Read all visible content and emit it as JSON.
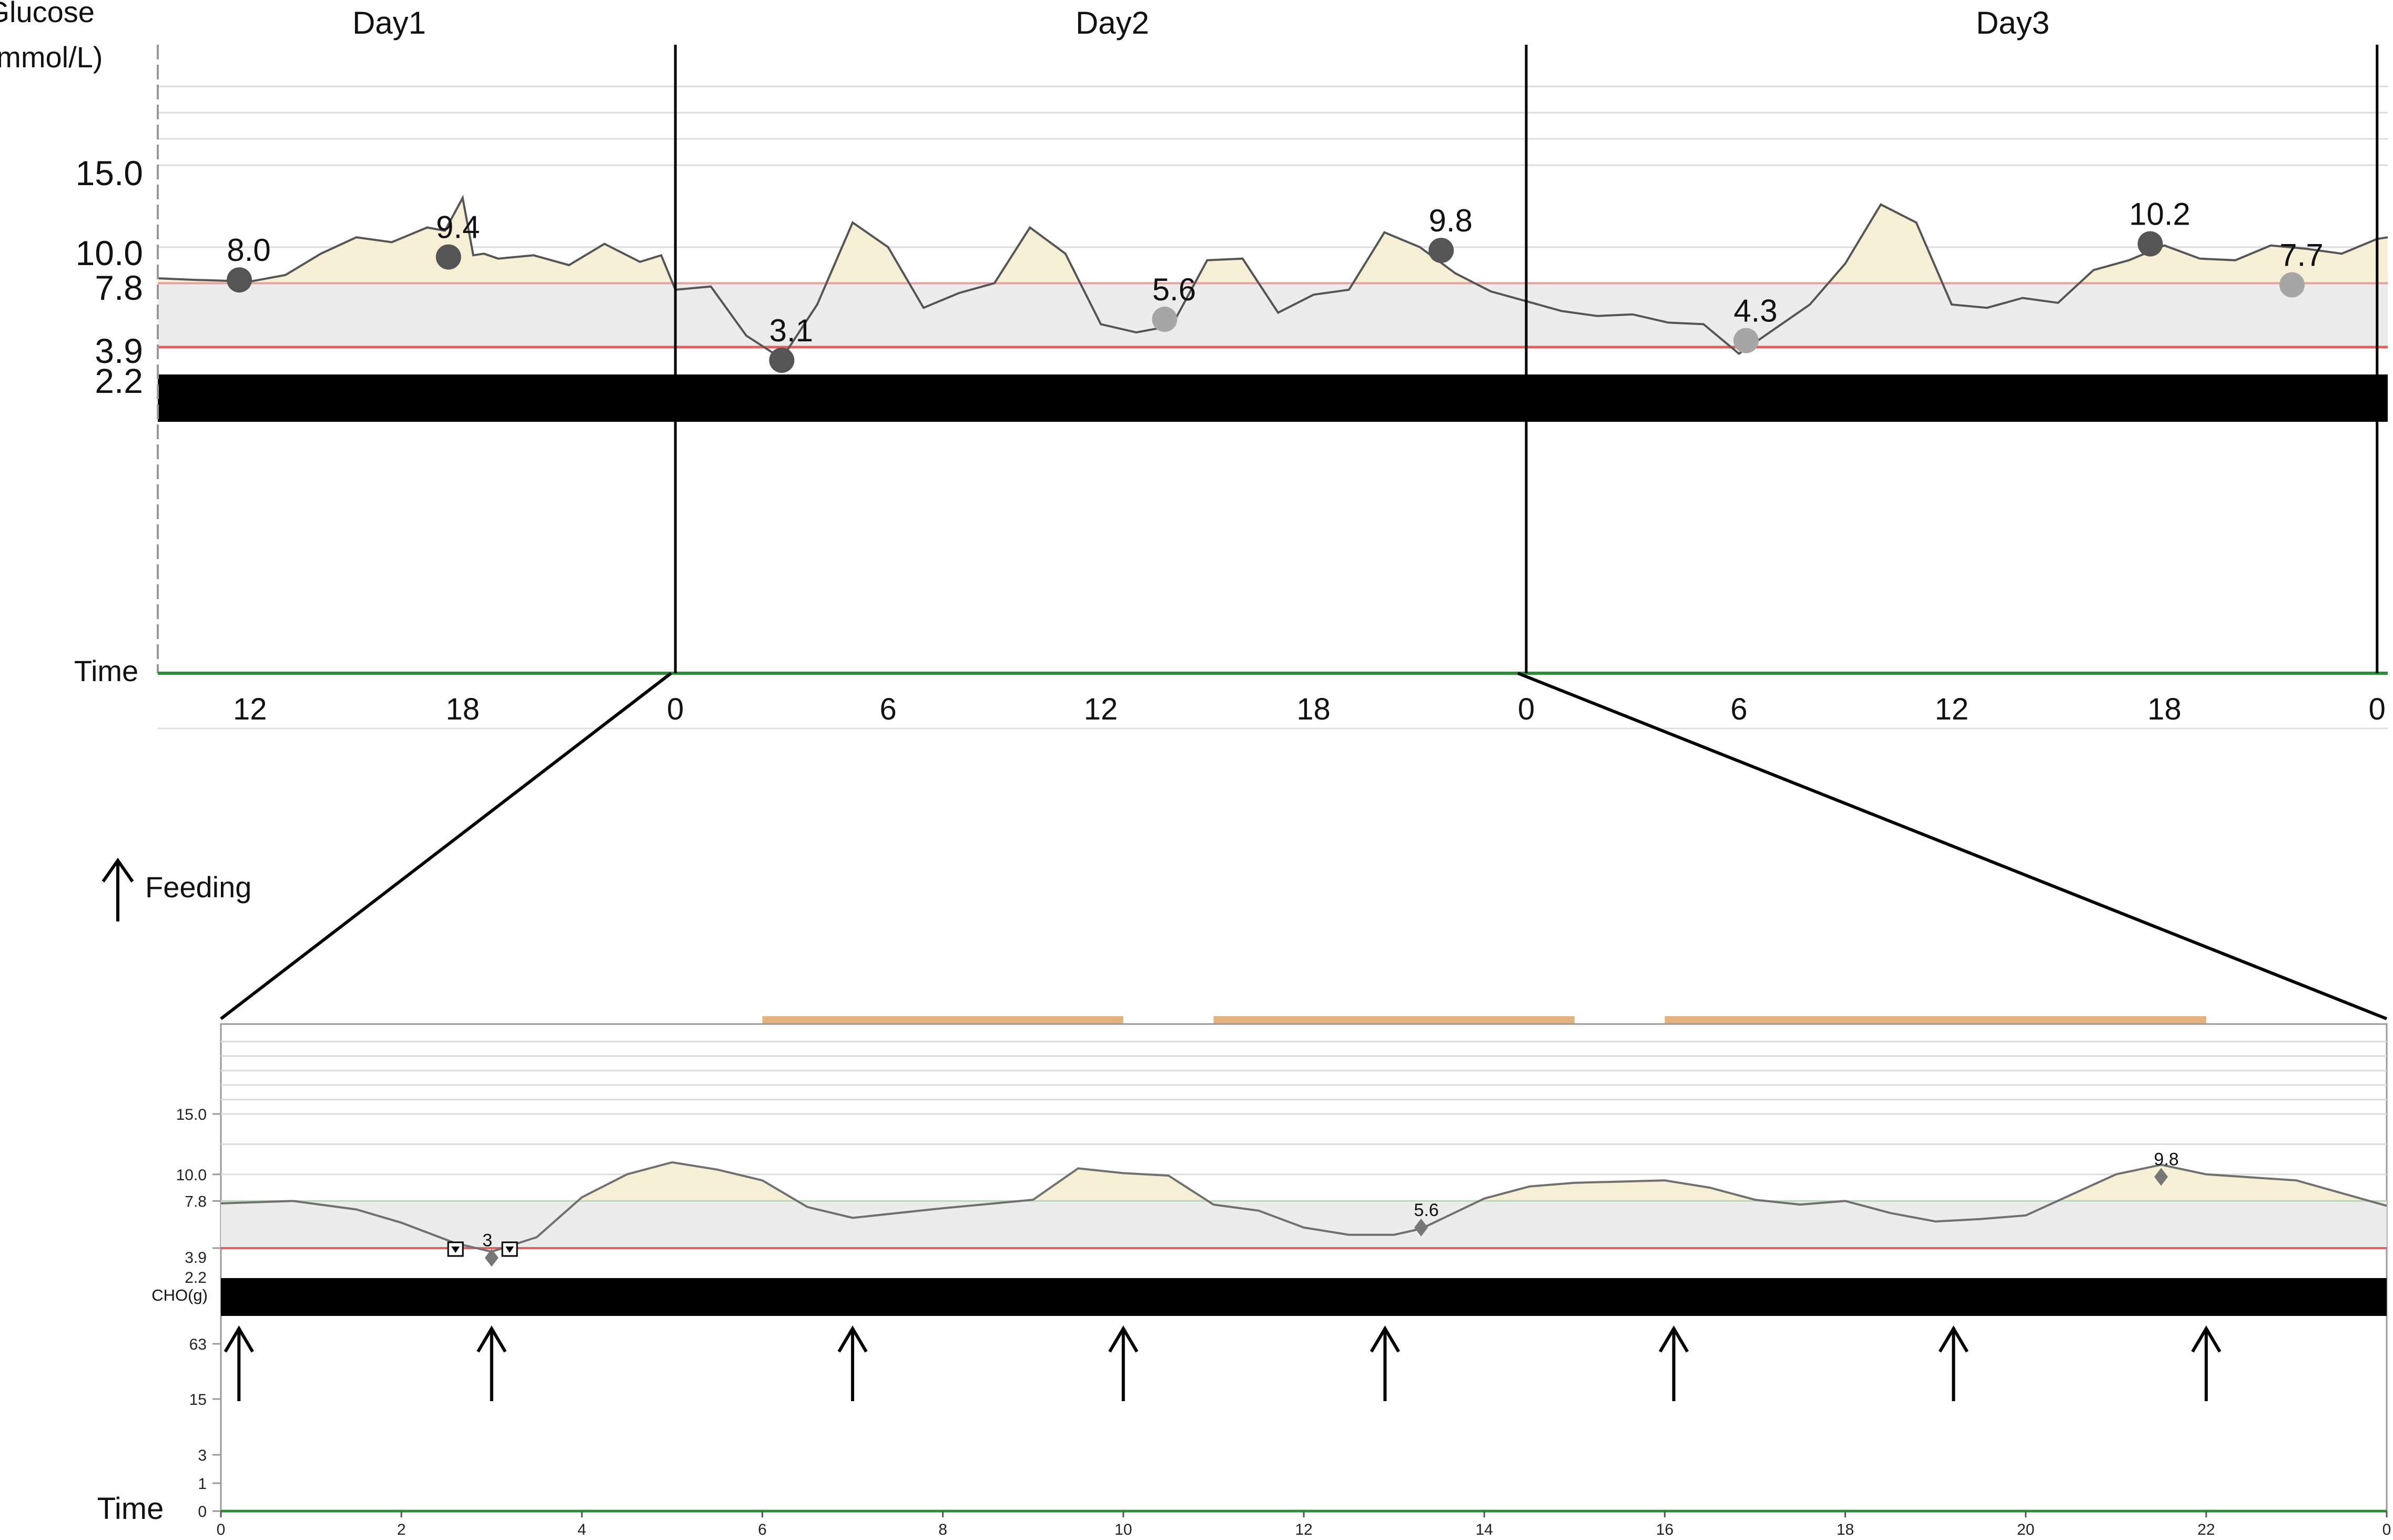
{
  "colors": {
    "high_fill": "#f6efd6",
    "target_band": "#ececec",
    "hypo_line": "#e06060",
    "target_top_line": "#e8a0a0",
    "time_axis": "#2e8b3a",
    "black_band": "#000000",
    "marker_dark": "#555555",
    "marker_light": "#a6a6a6",
    "meal_bar": "#e2b37e",
    "yellow_tick": "#c8902c",
    "red_tick": "#d03030"
  },
  "legend": {
    "feeding": "Feeding",
    "icon": "up-arrow-icon"
  },
  "chart_data": [
    {
      "type": "line",
      "ylabel": "Glucose\n(mmol/L)",
      "ylabel_lines": [
        "Glucose",
        "(mmol/L)"
      ],
      "xlabel": "Time",
      "day_labels": [
        "Day1",
        "Day2",
        "Day3"
      ],
      "y_ticks": [
        {
          "label": "15.0",
          "value": 15.0
        },
        {
          "label": "10.0",
          "value": 10.0
        },
        {
          "label": "7.8",
          "value": 7.8
        },
        {
          "label": "3.9",
          "value": 3.9
        },
        {
          "label": "2.2",
          "value": 2.2
        }
      ],
      "x_ticks": [
        "12",
        "18",
        "0",
        "6",
        "12",
        "18",
        "0",
        "6",
        "12",
        "18",
        "0"
      ],
      "x_tick_hours": [
        12,
        18,
        24,
        30,
        36,
        42,
        48,
        54,
        60,
        66,
        72
      ],
      "x_range_hours": [
        9.4,
        72.3
      ],
      "y_range": [
        1.3,
        20.5
      ],
      "day_dividers_hours": [
        24,
        48,
        72
      ],
      "target_range": [
        3.9,
        7.8
      ],
      "series": [
        {
          "x": [
            9.4,
            10.5,
            12,
            13,
            14,
            15,
            16,
            17,
            17.5,
            18,
            18.3,
            18.6,
            19,
            20,
            21,
            22,
            23,
            23.6,
            24,
            25,
            26,
            27,
            28,
            29,
            30,
            31,
            32,
            33,
            34,
            35,
            36,
            37,
            38,
            39,
            40,
            41,
            42,
            43,
            44,
            45,
            46,
            47,
            48,
            49,
            50,
            51,
            52,
            53,
            54,
            55,
            56,
            57,
            58,
            59,
            60,
            61,
            62,
            63,
            64,
            65,
            66,
            67,
            68,
            69,
            70,
            71,
            72,
            72.3
          ],
          "y": [
            8.1,
            8.0,
            7.9,
            8.3,
            9.6,
            10.6,
            10.3,
            11.2,
            11.0,
            13.0,
            9.5,
            9.6,
            9.3,
            9.5,
            8.9,
            10.2,
            9.1,
            9.5,
            7.4,
            7.6,
            4.6,
            3.2,
            6.5,
            11.5,
            10.0,
            6.3,
            7.2,
            7.8,
            11.2,
            9.6,
            5.3,
            4.8,
            5.2,
            9.2,
            9.3,
            6.0,
            7.1,
            7.4,
            10.9,
            10.0,
            8.4,
            7.3,
            6.7,
            6.1,
            5.8,
            5.9,
            5.4,
            5.3,
            3.5,
            5.0,
            6.5,
            9.0,
            12.6,
            11.5,
            6.5,
            6.3,
            6.9,
            6.6,
            8.6,
            9.2,
            10.1,
            9.3,
            9.2,
            10.1,
            9.9,
            9.6,
            10.5,
            10.6
          ]
        }
      ],
      "annotations": [
        {
          "label": "8.0",
          "x": 11.7,
          "y": 8.0,
          "shade": "dark"
        },
        {
          "label": "9.4",
          "x": 17.6,
          "y": 9.4,
          "shade": "dark"
        },
        {
          "label": "3.1",
          "x": 27.0,
          "y": 3.1,
          "shade": "dark"
        },
        {
          "label": "5.6",
          "x": 37.8,
          "y": 5.6,
          "shade": "light"
        },
        {
          "label": "9.8",
          "x": 45.6,
          "y": 9.8,
          "shade": "dark"
        },
        {
          "label": "4.3",
          "x": 54.2,
          "y": 4.3,
          "shade": "light"
        },
        {
          "label": "10.2",
          "x": 65.6,
          "y": 10.2,
          "shade": "dark"
        },
        {
          "label": "7.7",
          "x": 69.6,
          "y": 7.7,
          "shade": "light"
        }
      ]
    },
    {
      "type": "line",
      "xlabel": "Time",
      "x_ticks": [
        "0",
        "2",
        "4",
        "6",
        "8",
        "10",
        "12",
        "14",
        "16",
        "18",
        "20",
        "22",
        "0"
      ],
      "x_tick_hours": [
        0,
        2,
        4,
        6,
        8,
        10,
        12,
        14,
        16,
        18,
        20,
        22,
        24
      ],
      "x_range": [
        0,
        24
      ],
      "y_range": [
        1.3,
        21.5
      ],
      "y_ticks": [
        {
          "label": "15.0",
          "value": 15.0,
          "color": "yellow"
        },
        {
          "label": "10.0",
          "value": 10.0,
          "color": "yellow"
        },
        {
          "label": "7.8",
          "value": 7.8,
          "color": "dark"
        },
        {
          "label": "3.9",
          "value": 3.9,
          "color": "red"
        },
        {
          "label": "2.2",
          "value": 2.2,
          "color": "red"
        }
      ],
      "cho_label": "CHO(g)",
      "cho_ticks": [
        "63",
        "15",
        "3",
        "1",
        "0"
      ],
      "series": [
        {
          "x": [
            0,
            0.8,
            1.5,
            2,
            2.6,
            3,
            3.5,
            4,
            4.5,
            5,
            5.5,
            6,
            6.5,
            7,
            8,
            9,
            9.5,
            10,
            10.5,
            11,
            11.5,
            12,
            12.5,
            13,
            13.3,
            14,
            14.5,
            15,
            16,
            16.5,
            17,
            17.5,
            18,
            18.5,
            19,
            19.5,
            20,
            21,
            21.5,
            22,
            23,
            24
          ],
          "y": [
            7.6,
            7.8,
            7.1,
            6.0,
            4.3,
            3.6,
            4.8,
            8.1,
            10.0,
            11.0,
            10.4,
            9.5,
            7.3,
            6.4,
            7.2,
            7.9,
            10.5,
            10.1,
            9.9,
            7.5,
            7.0,
            5.6,
            5.0,
            5.0,
            5.5,
            8.0,
            9.0,
            9.3,
            9.5,
            8.9,
            7.9,
            7.5,
            7.8,
            6.8,
            6.1,
            6.3,
            6.6,
            10.0,
            10.8,
            10.0,
            9.5,
            7.4
          ]
        }
      ],
      "annotations": [
        {
          "label": "3",
          "x": 3.0,
          "y": 3.1
        },
        {
          "label": "5.6",
          "x": 13.3,
          "y": 5.6
        },
        {
          "label": "9.8",
          "x": 21.5,
          "y": 9.8
        }
      ],
      "feeding_hours": [
        0.2,
        3.0,
        7.0,
        10.0,
        12.9,
        16.1,
        19.2,
        22.0
      ],
      "sleep_bars_hours": [
        [
          6,
          10
        ],
        [
          11,
          15
        ],
        [
          16,
          22
        ]
      ],
      "event_marker_hours": [
        2.6,
        3.2
      ]
    }
  ]
}
